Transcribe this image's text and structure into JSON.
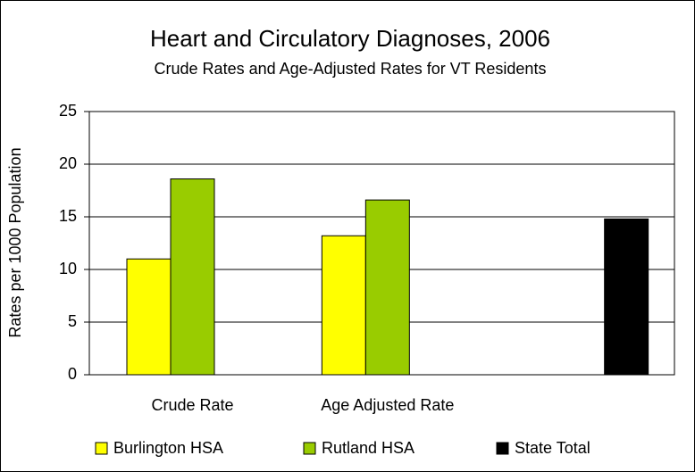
{
  "chart_data": {
    "type": "bar",
    "title": "Heart and Circulatory Diagnoses, 2006",
    "subtitle": "Crude Rates and Age-Adjusted Rates for VT Residents",
    "y_label": "Rates per 1000 Population",
    "categories": [
      "Crude Rate",
      "Age Adjusted Rate",
      null
    ],
    "series": [
      {
        "name": "Burlington HSA",
        "color": "#ffff00",
        "values": [
          11,
          13.2,
          null
        ]
      },
      {
        "name": "Rutland HSA",
        "color": "#99cc00",
        "values": [
          18.6,
          16.6,
          null
        ]
      },
      {
        "name": "State Total",
        "color": "#000000",
        "values": [
          null,
          null,
          14.8
        ]
      }
    ],
    "ylim": [
      0,
      25
    ],
    "yticks": [
      0,
      5,
      10,
      15,
      20,
      25
    ],
    "grid": true,
    "legend": "bottom"
  }
}
